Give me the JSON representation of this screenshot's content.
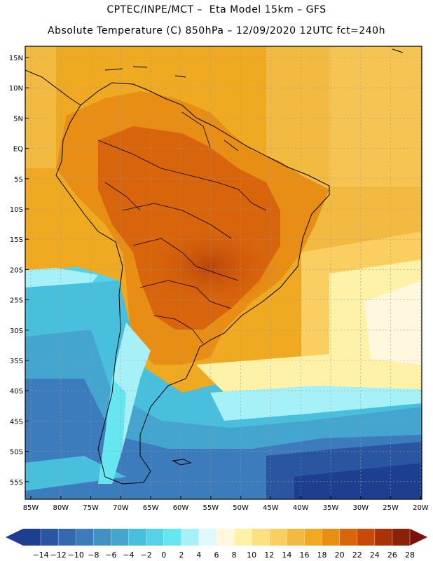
{
  "header": {
    "line1": "CPTEC/INPE/MCT –  Eta Model 15km – GFS",
    "line2": "Absolute Temperature (C) 850hPa – 12/09/2020 12UTC fct=240h"
  },
  "map": {
    "lat_labels": [
      "15N",
      "10N",
      "5N",
      "EQ",
      "5S",
      "10S",
      "15S",
      "20S",
      "25S",
      "30S",
      "35S",
      "40S",
      "45S",
      "50S",
      "55S"
    ],
    "lon_labels": [
      "85W",
      "80W",
      "75W",
      "70W",
      "65W",
      "60W",
      "55W",
      "50W",
      "45W",
      "40W",
      "35W",
      "30W",
      "25W",
      "20W"
    ],
    "region": "South America"
  },
  "colorbar": {
    "labels": [
      "-14",
      "-12",
      "-10",
      "-8",
      "-6",
      "-4",
      "-2",
      "0",
      "2",
      "4",
      "6",
      "8",
      "10",
      "12",
      "14",
      "16",
      "18",
      "20",
      "22",
      "24",
      "26",
      "28"
    ],
    "colors": [
      "#1e3f8f",
      "#2a55a0",
      "#3568ae",
      "#3c7cbc",
      "#4191c4",
      "#44a6cf",
      "#48bfdc",
      "#55d2e6",
      "#66e6f0",
      "#a6f1f8",
      "#dff8fb",
      "#fff8df",
      "#fff2a8",
      "#ffe080",
      "#fbce62",
      "#f2ba40",
      "#efaa22",
      "#e88e14",
      "#d8640c",
      "#c84a08",
      "#a93306",
      "#8a2206"
    ],
    "left_arrow": "#1e3f8f",
    "right_arrow": "#7a1010"
  }
}
